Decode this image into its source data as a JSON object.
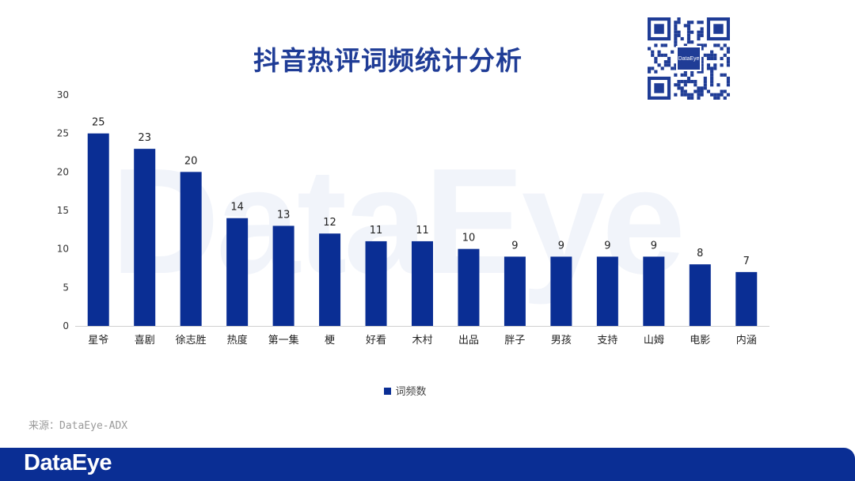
{
  "title": "抖音热评词频统计分析",
  "watermark": "DataEye",
  "qr_logo": "DataEye",
  "source": "来源：DataEye-ADX",
  "footer_logo": "DataEye",
  "colors": {
    "bar": "#0a2e94",
    "title": "#1f3c96",
    "footer": "#0a2e94"
  },
  "chart_data": {
    "type": "bar",
    "title": "抖音热评词频统计分析",
    "categories": [
      "星爷",
      "喜剧",
      "徐志胜",
      "热度",
      "第一集",
      "梗",
      "好看",
      "木村",
      "出品",
      "胖子",
      "男孩",
      "支持",
      "山姆",
      "电影",
      "内涵"
    ],
    "series": [
      {
        "name": "词频数",
        "values": [
          25,
          23,
          20,
          14,
          13,
          12,
          11,
          11,
          10,
          9,
          9,
          9,
          9,
          8,
          7
        ]
      }
    ],
    "ylim": [
      0,
      30
    ],
    "yticks": [
      0,
      5,
      10,
      15,
      20,
      25,
      30
    ],
    "grid": false,
    "data_labels": true,
    "legend_position": "bottom"
  }
}
